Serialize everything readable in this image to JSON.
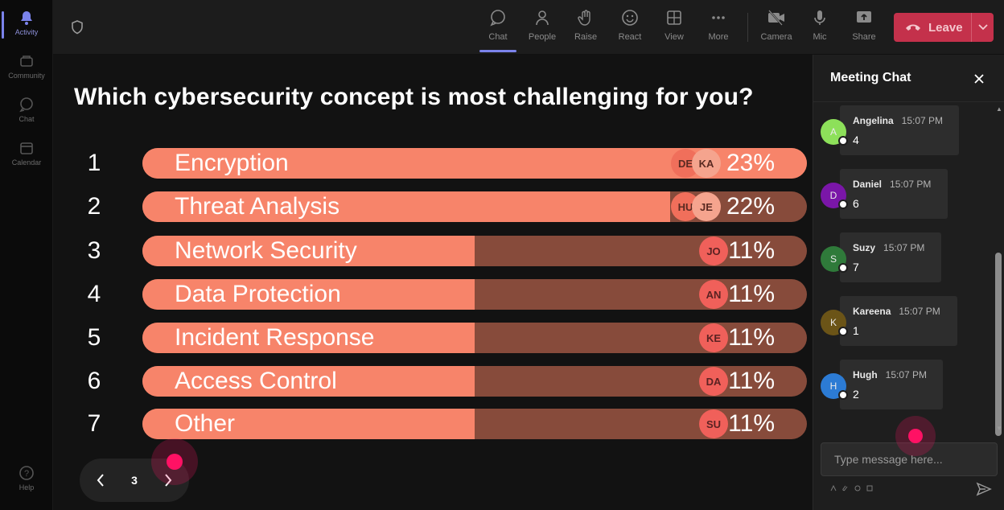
{
  "rail": {
    "items": [
      {
        "label": "Activity",
        "icon": "bell-icon"
      },
      {
        "label": "Community",
        "icon": "community-icon"
      },
      {
        "label": "Chat",
        "icon": "chat-icon"
      },
      {
        "label": "Calendar",
        "icon": "calendar-icon"
      }
    ],
    "help": {
      "label": "Help",
      "icon": "help-icon"
    }
  },
  "toolbar": {
    "buttons": [
      {
        "label": "Chat",
        "icon": "chat-icon"
      },
      {
        "label": "People",
        "icon": "people-icon"
      },
      {
        "label": "Raise",
        "icon": "hand-icon"
      },
      {
        "label": "React",
        "icon": "smiley-icon"
      },
      {
        "label": "View",
        "icon": "grid-icon"
      },
      {
        "label": "More",
        "icon": "more-icon"
      },
      {
        "label": "Camera",
        "icon": "camera-off-icon"
      },
      {
        "label": "Mic",
        "icon": "mic-icon"
      },
      {
        "label": "Share",
        "icon": "share-icon"
      }
    ],
    "leave_label": "Leave"
  },
  "poll": {
    "question": "Which cybersecurity concept is most challenging for you?",
    "options": [
      {
        "num": "1",
        "label": "Encryption",
        "pct": "23%",
        "value": 23,
        "avatars": [
          "DE",
          "KA"
        ]
      },
      {
        "num": "2",
        "label": "Threat Analysis",
        "pct": "22%",
        "value": 22,
        "avatars": [
          "HU",
          "JE"
        ]
      },
      {
        "num": "3",
        "label": "Network Security",
        "pct": "11%",
        "value": 11,
        "avatars": [
          "JO"
        ]
      },
      {
        "num": "4",
        "label": "Data Protection",
        "pct": "11%",
        "value": 11,
        "avatars": [
          "AN"
        ]
      },
      {
        "num": "5",
        "label": "Incident Response",
        "pct": "11%",
        "value": 11,
        "avatars": [
          "KE"
        ]
      },
      {
        "num": "6",
        "label": "Access Control",
        "pct": "11%",
        "value": 11,
        "avatars": [
          "DA"
        ]
      },
      {
        "num": "7",
        "label": "Other",
        "pct": "11%",
        "value": 11,
        "avatars": [
          "SU"
        ]
      }
    ],
    "page": "3"
  },
  "chat": {
    "title": "Meeting Chat",
    "messages": [
      {
        "initial": "A",
        "name": "Angelina",
        "time": "15:07 PM",
        "text": "4",
        "color": "#8de05a"
      },
      {
        "initial": "D",
        "name": "Daniel",
        "time": "15:07 PM",
        "text": "6",
        "color": "#7a16a8"
      },
      {
        "initial": "S",
        "name": "Suzy",
        "time": "15:07 PM",
        "text": "7",
        "color": "#2f7a3a"
      },
      {
        "initial": "K",
        "name": "Kareena",
        "time": "15:07 PM",
        "text": "1",
        "color": "#6b5417"
      },
      {
        "initial": "H",
        "name": "Hugh",
        "time": "15:07 PM",
        "text": "2",
        "color": "#2c7bd4"
      }
    ],
    "placeholder": "Type message here..."
  },
  "colors": {
    "accent": "#7b83eb",
    "leave": "#c4314b",
    "bar_fill": "#f7846a",
    "bar_track": "#874b3b",
    "cursor": "#ff1164"
  }
}
